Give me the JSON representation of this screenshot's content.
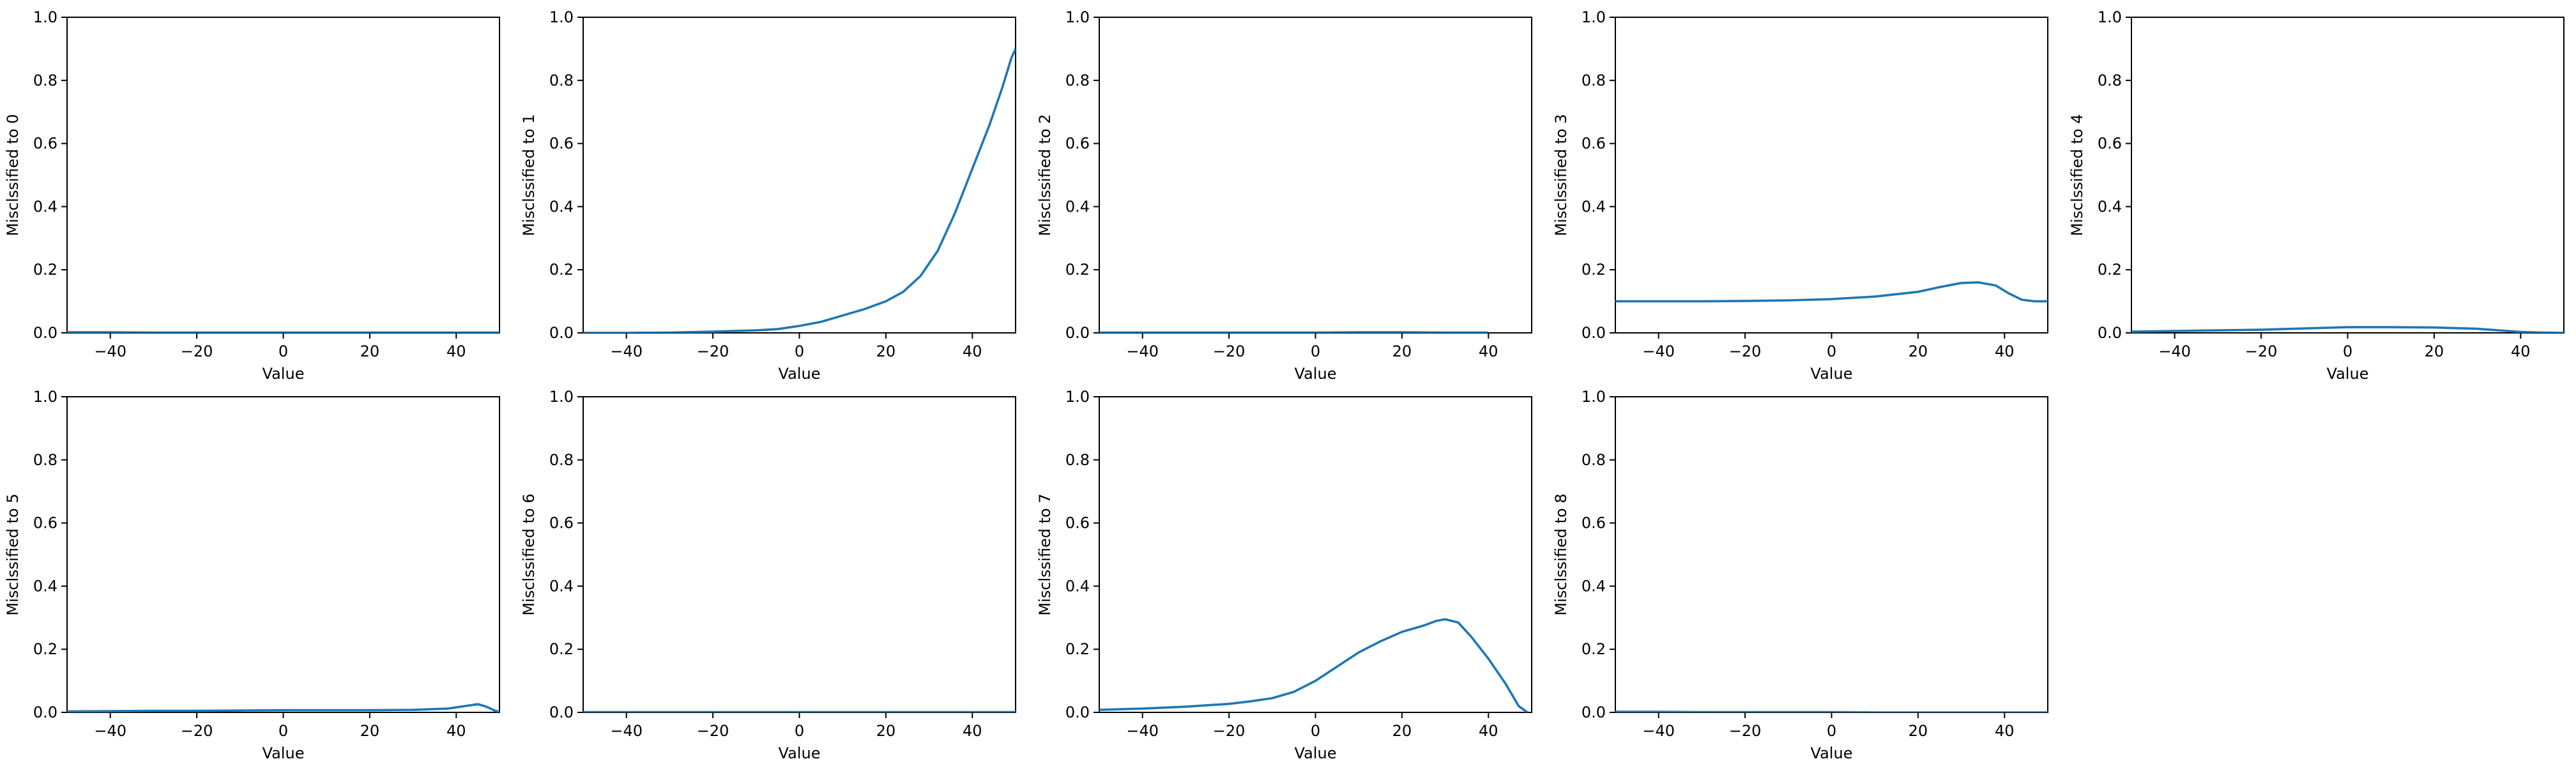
{
  "style": {
    "line_color": "#1f77b4",
    "axis_color": "#000000",
    "background": "#ffffff"
  },
  "chart_data": [
    {
      "type": "line",
      "xlabel": "Value",
      "ylabel": "Misclssified to 0",
      "xlim": [
        -50,
        50
      ],
      "ylim": [
        0,
        1
      ],
      "grid": false,
      "xticks": [
        -40,
        -20,
        0,
        20,
        40
      ],
      "yticks": [
        0.0,
        0.2,
        0.4,
        0.6,
        0.8,
        1.0
      ],
      "xtick_labels": [
        "−40",
        "−20",
        "0",
        "20",
        "40"
      ],
      "ytick_labels": [
        "0.0",
        "0.2",
        "0.4",
        "0.6",
        "0.8",
        "1.0"
      ],
      "series": [
        {
          "x": [
            -50,
            -40,
            -30,
            -20,
            -10,
            0,
            10,
            20,
            30,
            40,
            50
          ],
          "y": [
            0.002,
            0.002,
            0.001,
            0.001,
            0.001,
            0.001,
            0.001,
            0.001,
            0.001,
            0.001,
            0.001
          ]
        }
      ]
    },
    {
      "type": "line",
      "xlabel": "Value",
      "ylabel": "Misclssified to 1",
      "xlim": [
        -50,
        50
      ],
      "ylim": [
        0,
        1
      ],
      "grid": false,
      "xticks": [
        -40,
        -20,
        0,
        20,
        40
      ],
      "yticks": [
        0.0,
        0.2,
        0.4,
        0.6,
        0.8,
        1.0
      ],
      "xtick_labels": [
        "−40",
        "−20",
        "0",
        "20",
        "40"
      ],
      "ytick_labels": [
        "0.0",
        "0.2",
        "0.4",
        "0.6",
        "0.8",
        "1.0"
      ],
      "series": [
        {
          "x": [
            -50,
            -40,
            -30,
            -20,
            -10,
            -5,
            0,
            5,
            10,
            15,
            20,
            24,
            28,
            32,
            36,
            40,
            44,
            47,
            49,
            50
          ],
          "y": [
            0.0,
            0.0,
            0.001,
            0.004,
            0.008,
            0.012,
            0.022,
            0.035,
            0.055,
            0.075,
            0.1,
            0.13,
            0.18,
            0.26,
            0.38,
            0.52,
            0.66,
            0.78,
            0.87,
            0.9
          ]
        }
      ]
    },
    {
      "type": "line",
      "xlabel": "Value",
      "ylabel": "Misclssified to 2",
      "xlim": [
        -50,
        50
      ],
      "ylim": [
        0,
        1
      ],
      "grid": false,
      "xticks": [
        -40,
        -20,
        0,
        20,
        40
      ],
      "yticks": [
        0.0,
        0.2,
        0.4,
        0.6,
        0.8,
        1.0
      ],
      "xtick_labels": [
        "−40",
        "−20",
        "0",
        "20",
        "40"
      ],
      "ytick_labels": [
        "0.0",
        "0.2",
        "0.4",
        "0.6",
        "0.8",
        "1.0"
      ],
      "series": [
        {
          "x": [
            -50,
            -40,
            -30,
            -20,
            -10,
            0,
            10,
            20,
            30,
            40
          ],
          "y": [
            0.001,
            0.001,
            0.001,
            0.001,
            0.001,
            0.001,
            0.002,
            0.002,
            0.001,
            0.001
          ]
        }
      ]
    },
    {
      "type": "line",
      "xlabel": "Value",
      "ylabel": "Misclssified to 3",
      "xlim": [
        -50,
        50
      ],
      "ylim": [
        0,
        1
      ],
      "grid": false,
      "xticks": [
        -40,
        -20,
        0,
        20,
        40
      ],
      "yticks": [
        0.0,
        0.2,
        0.4,
        0.6,
        0.8,
        1.0
      ],
      "xtick_labels": [
        "−40",
        "−20",
        "0",
        "20",
        "40"
      ],
      "ytick_labels": [
        "0.0",
        "0.2",
        "0.4",
        "0.6",
        "0.8",
        "1.0"
      ],
      "series": [
        {
          "x": [
            -50,
            -40,
            -30,
            -20,
            -10,
            0,
            10,
            20,
            25,
            30,
            34,
            38,
            41,
            44,
            47,
            50
          ],
          "y": [
            0.1,
            0.1,
            0.1,
            0.101,
            0.103,
            0.107,
            0.115,
            0.13,
            0.145,
            0.158,
            0.16,
            0.15,
            0.125,
            0.105,
            0.1,
            0.1
          ]
        }
      ]
    },
    {
      "type": "line",
      "xlabel": "Value",
      "ylabel": "Misclssified to 4",
      "xlim": [
        -50,
        50
      ],
      "ylim": [
        0,
        1
      ],
      "grid": false,
      "xticks": [
        -40,
        -20,
        0,
        20,
        40
      ],
      "yticks": [
        0.0,
        0.2,
        0.4,
        0.6,
        0.8,
        1.0
      ],
      "xtick_labels": [
        "−40",
        "−20",
        "0",
        "20",
        "40"
      ],
      "ytick_labels": [
        "0.0",
        "0.2",
        "0.4",
        "0.6",
        "0.8",
        "1.0"
      ],
      "series": [
        {
          "x": [
            -50,
            -40,
            -30,
            -20,
            -10,
            0,
            10,
            20,
            30,
            35,
            40,
            45,
            50
          ],
          "y": [
            0.004,
            0.006,
            0.008,
            0.01,
            0.014,
            0.018,
            0.018,
            0.017,
            0.013,
            0.008,
            0.003,
            0.001,
            0.0
          ]
        }
      ]
    },
    {
      "type": "line",
      "xlabel": "Value",
      "ylabel": "Misclssified to 5",
      "xlim": [
        -50,
        50
      ],
      "ylim": [
        0,
        1
      ],
      "grid": false,
      "xticks": [
        -40,
        -20,
        0,
        20,
        40
      ],
      "yticks": [
        0.0,
        0.2,
        0.4,
        0.6,
        0.8,
        1.0
      ],
      "xtick_labels": [
        "−40",
        "−20",
        "0",
        "20",
        "40"
      ],
      "ytick_labels": [
        "0.0",
        "0.2",
        "0.4",
        "0.6",
        "0.8",
        "1.0"
      ],
      "series": [
        {
          "x": [
            -50,
            -40,
            -30,
            -20,
            -10,
            0,
            10,
            20,
            30,
            38,
            42,
            45,
            47,
            49,
            50
          ],
          "y": [
            0.003,
            0.004,
            0.005,
            0.005,
            0.006,
            0.007,
            0.007,
            0.007,
            0.008,
            0.012,
            0.02,
            0.026,
            0.018,
            0.005,
            0.002
          ]
        }
      ]
    },
    {
      "type": "line",
      "xlabel": "Value",
      "ylabel": "Misclssified to 6",
      "xlim": [
        -50,
        50
      ],
      "ylim": [
        0,
        1
      ],
      "grid": false,
      "xticks": [
        -40,
        -20,
        0,
        20,
        40
      ],
      "yticks": [
        0.0,
        0.2,
        0.4,
        0.6,
        0.8,
        1.0
      ],
      "xtick_labels": [
        "−40",
        "−20",
        "0",
        "20",
        "40"
      ],
      "ytick_labels": [
        "0.0",
        "0.2",
        "0.4",
        "0.6",
        "0.8",
        "1.0"
      ],
      "series": [
        {
          "x": [
            -50,
            -40,
            -30,
            -20,
            -10,
            0,
            10,
            20,
            30,
            40,
            50
          ],
          "y": [
            0.001,
            0.001,
            0.001,
            0.001,
            0.001,
            0.001,
            0.001,
            0.001,
            0.001,
            0.001,
            0.001
          ]
        }
      ]
    },
    {
      "type": "line",
      "xlabel": "Value",
      "ylabel": "Misclssified to 7",
      "xlim": [
        -50,
        50
      ],
      "ylim": [
        0,
        1
      ],
      "grid": false,
      "xticks": [
        -40,
        -20,
        0,
        20,
        40
      ],
      "yticks": [
        0.0,
        0.2,
        0.4,
        0.6,
        0.8,
        1.0
      ],
      "xtick_labels": [
        "−40",
        "−20",
        "0",
        "20",
        "40"
      ],
      "ytick_labels": [
        "0.0",
        "0.2",
        "0.4",
        "0.6",
        "0.8",
        "1.0"
      ],
      "series": [
        {
          "x": [
            -50,
            -40,
            -30,
            -20,
            -15,
            -10,
            -5,
            0,
            5,
            10,
            15,
            20,
            25,
            28,
            30,
            33,
            36,
            40,
            44,
            47,
            49
          ],
          "y": [
            0.008,
            0.012,
            0.018,
            0.027,
            0.035,
            0.045,
            0.065,
            0.1,
            0.145,
            0.19,
            0.225,
            0.255,
            0.275,
            0.29,
            0.295,
            0.285,
            0.24,
            0.17,
            0.09,
            0.02,
            0.0
          ]
        }
      ]
    },
    {
      "type": "line",
      "xlabel": "Value",
      "ylabel": "Misclssified to 8",
      "xlim": [
        -50,
        50
      ],
      "ylim": [
        0,
        1
      ],
      "grid": false,
      "xticks": [
        -40,
        -20,
        0,
        20,
        40
      ],
      "yticks": [
        0.0,
        0.2,
        0.4,
        0.6,
        0.8,
        1.0
      ],
      "xtick_labels": [
        "−40",
        "−20",
        "0",
        "20",
        "40"
      ],
      "ytick_labels": [
        "0.0",
        "0.2",
        "0.4",
        "0.6",
        "0.8",
        "1.0"
      ],
      "series": [
        {
          "x": [
            -50,
            -40,
            -30,
            -20,
            -10,
            0,
            10,
            20,
            30,
            40,
            50
          ],
          "y": [
            0.002,
            0.002,
            0.001,
            0.001,
            0.001,
            0.001,
            0.0,
            0.0,
            0.0,
            0.0,
            0.0
          ]
        }
      ]
    }
  ]
}
